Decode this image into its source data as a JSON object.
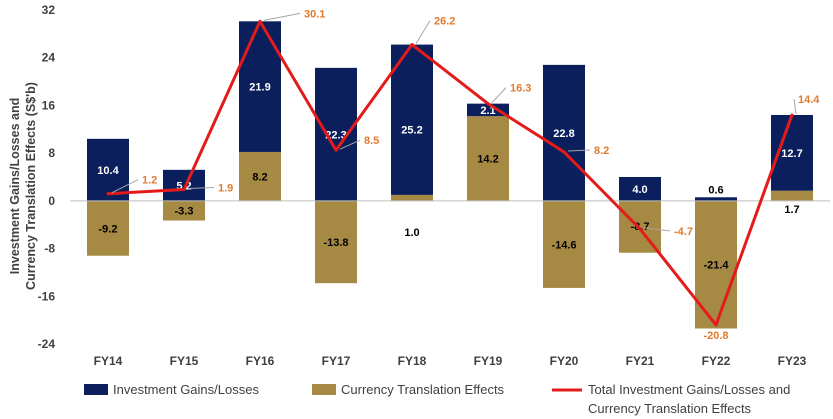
{
  "chart_data": {
    "type": "bar",
    "subtype": "stacked bar with line overlay",
    "categories": [
      "FY14",
      "FY15",
      "FY16",
      "FY17",
      "FY18",
      "FY19",
      "FY20",
      "FY21",
      "FY22",
      "FY23"
    ],
    "series": [
      {
        "name": "Investment Gains/Losses",
        "kind": "bar",
        "color": "#0a1f5c",
        "values": [
          10.4,
          5.2,
          21.9,
          22.3,
          25.2,
          2.1,
          22.8,
          4.0,
          0.6,
          12.7
        ],
        "labels": [
          "10.4",
          "5.2",
          "21.9",
          "22.3",
          "25.2",
          "2.1",
          "22.8",
          "4.0",
          "0.6",
          "12.7"
        ]
      },
      {
        "name": "Currency Translation Effects",
        "kind": "bar",
        "color": "#a68a44",
        "values": [
          -9.2,
          -3.3,
          8.2,
          -13.8,
          1.0,
          14.2,
          -14.6,
          -8.7,
          -21.4,
          1.7
        ],
        "labels": [
          "-9.2",
          "-3.3",
          "8.2",
          "-13.8",
          "1.0",
          "14.2",
          "-14.6",
          "-8.7",
          "-21.4",
          "1.7"
        ]
      },
      {
        "name": "Total Investment Gains/Losses and Currency Translation Effects",
        "kind": "line",
        "color": "#e41b1b",
        "values": [
          1.2,
          1.9,
          30.1,
          8.5,
          26.2,
          16.3,
          8.2,
          -4.7,
          -20.8,
          14.4
        ],
        "labels": [
          "1.2",
          "1.9",
          "30.1",
          "8.5",
          "26.2",
          "16.3",
          "8.2",
          "-4.7",
          "-20.8",
          "14.4"
        ],
        "label_color": "#e07b2e"
      }
    ],
    "legend": {
      "position": "bottom",
      "items": [
        "Investment Gains/Losses",
        "Currency Translation Effects"
      ],
      "line_item_lines": [
        "Total Investment Gains/Losses and",
        "Currency Translation Effects"
      ]
    },
    "ylabel_lines": [
      "Investment Gains/Losses and",
      "Currency Translation Effects (S$'b)"
    ],
    "xlabel": "",
    "ylim": [
      -24,
      32
    ],
    "yticks": [
      "32",
      "24",
      "16",
      "8",
      "0",
      "-8",
      "-16",
      "-24"
    ],
    "ytick_values": [
      32,
      24,
      16,
      8,
      0,
      -8,
      -16,
      -24
    ],
    "grid": false
  }
}
